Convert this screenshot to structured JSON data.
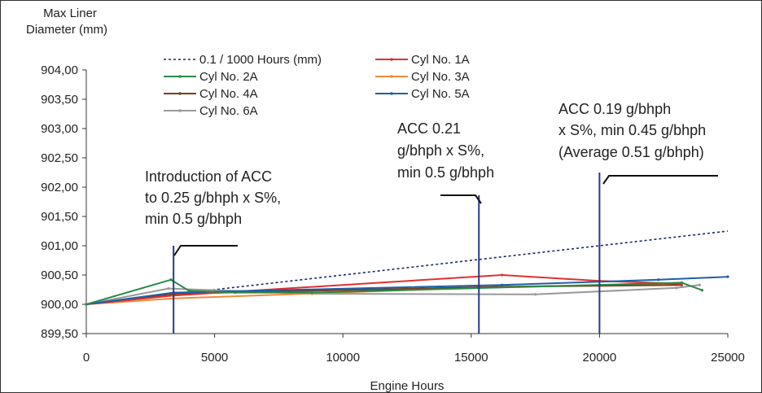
{
  "chart_data": {
    "type": "line",
    "title": "",
    "xlabel": "Engine Hours",
    "ylabel": "Max Liner Diameter (mm)",
    "ylabel_lines": [
      "Max Liner",
      "Diameter (mm)"
    ],
    "xlim": [
      0,
      25000
    ],
    "ylim": [
      899.5,
      904.0
    ],
    "x_ticks": [
      0,
      5000,
      10000,
      15000,
      20000,
      25000
    ],
    "x_tick_labels": [
      "0",
      "5000",
      "10000",
      "15000",
      "20000",
      "25000"
    ],
    "y_ticks": [
      899.5,
      900.0,
      900.5,
      901.0,
      901.5,
      902.0,
      902.5,
      903.0,
      903.5,
      904.0
    ],
    "y_tick_labels": [
      "899,50",
      "900,00",
      "900,50",
      "901,00",
      "901,50",
      "902,00",
      "902,50",
      "903,00",
      "903,50",
      "904,00"
    ],
    "grid": false,
    "legend_position": "top",
    "series": [
      {
        "name": "0.1 / 1000 Hours (mm)",
        "color": "#1b2a5e",
        "dashed": true,
        "marker": false,
        "x": [
          0,
          25000
        ],
        "y": [
          900.0,
          901.25
        ]
      },
      {
        "name": "Cyl No. 1A",
        "color": "#e03030",
        "dashed": false,
        "marker": true,
        "x": [
          0,
          3400,
          16200,
          20000,
          23200
        ],
        "y": [
          900.0,
          900.15,
          900.5,
          900.4,
          900.35
        ]
      },
      {
        "name": "Cyl No. 2A",
        "color": "#2a8a48",
        "dashed": false,
        "marker": true,
        "x": [
          0,
          3300,
          4000,
          5800,
          8800,
          23200,
          24000
        ],
        "y": [
          900.0,
          900.42,
          900.23,
          900.2,
          900.2,
          900.37,
          900.24
        ]
      },
      {
        "name": "Cyl No. 3A",
        "color": "#f08a3c",
        "dashed": false,
        "marker": true,
        "x": [
          0,
          3400,
          16200,
          23000
        ],
        "y": [
          900.0,
          900.1,
          900.3,
          900.35
        ]
      },
      {
        "name": "Cyl No. 4A",
        "color": "#7a3e1e",
        "dashed": false,
        "marker": true,
        "x": [
          0,
          3400,
          16200,
          23200
        ],
        "y": [
          900.0,
          900.18,
          900.3,
          900.33
        ]
      },
      {
        "name": "Cyl No. 5A",
        "color": "#1f5fa8",
        "dashed": false,
        "marker": true,
        "x": [
          0,
          3400,
          16200,
          22300,
          25000
        ],
        "y": [
          900.0,
          900.2,
          900.33,
          900.42,
          900.47
        ]
      },
      {
        "name": "Cyl No. 6A",
        "color": "#999999",
        "dashed": false,
        "marker": true,
        "x": [
          0,
          3200,
          8800,
          17500,
          23000,
          23900
        ],
        "y": [
          900.0,
          900.27,
          900.18,
          900.17,
          900.28,
          900.33
        ]
      }
    ],
    "vertical_markers": [
      {
        "x": 3400,
        "color": "#2a3a8a"
      },
      {
        "x": 15300,
        "color": "#2a3a8a"
      },
      {
        "x": 20000,
        "color": "#2a3a8a"
      }
    ],
    "annotations": [
      {
        "lines": [
          "Introduction of ACC",
          "to 0.25 g/bhph x S%,",
          "min 0.5 g/bhph"
        ]
      },
      {
        "lines": [
          "ACC 0.21",
          "g/bhph x S%,",
          "min 0.5 g/bhph"
        ]
      },
      {
        "lines": [
          "ACC 0.19 g/bhph",
          "x S%, min 0.45 g/bhph",
          "(Average 0.51 g/bhph)"
        ]
      }
    ]
  }
}
